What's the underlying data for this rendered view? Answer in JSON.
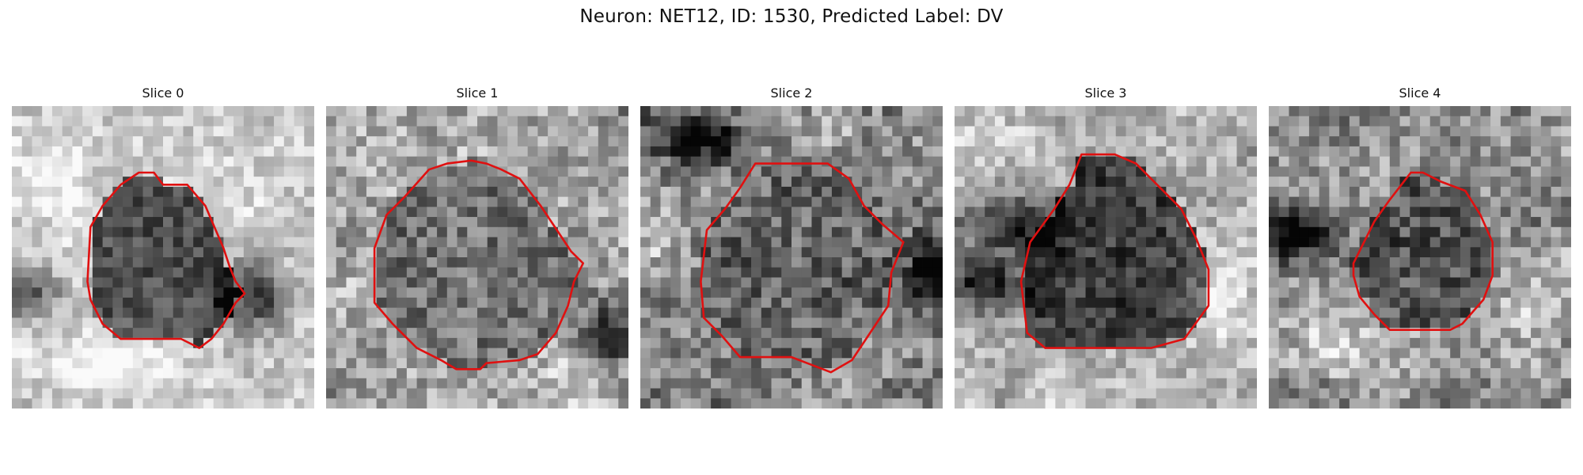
{
  "title": "Neuron: NET12, ID: 1530, Predicted Label: DV",
  "colors": {
    "contour": "#e01010"
  },
  "panels": [
    {
      "label": "Slice 0",
      "seed": 11,
      "light": 0.8,
      "spread": 0.14,
      "cell_level": 0.3,
      "cell": [
        [
          0.42,
          0.22
        ],
        [
          0.47,
          0.22
        ],
        [
          0.5,
          0.26
        ],
        [
          0.58,
          0.26
        ],
        [
          0.64,
          0.33
        ],
        [
          0.67,
          0.4
        ],
        [
          0.7,
          0.47
        ],
        [
          0.72,
          0.53
        ],
        [
          0.74,
          0.58
        ],
        [
          0.77,
          0.62
        ],
        [
          0.74,
          0.65
        ],
        [
          0.7,
          0.72
        ],
        [
          0.66,
          0.77
        ],
        [
          0.62,
          0.8
        ],
        [
          0.56,
          0.77
        ],
        [
          0.45,
          0.77
        ],
        [
          0.36,
          0.77
        ],
        [
          0.3,
          0.72
        ],
        [
          0.26,
          0.64
        ],
        [
          0.25,
          0.58
        ],
        [
          0.26,
          0.4
        ],
        [
          0.3,
          0.33
        ],
        [
          0.36,
          0.26
        ]
      ],
      "dark_blobs": [
        [
          0.8,
          0.63,
          0.11,
          0.12
        ],
        [
          0.05,
          0.62,
          0.12,
          0.09
        ]
      ],
      "light_blobs": [
        [
          0.3,
          0.85,
          0.2,
          0.08
        ],
        [
          0.1,
          0.2,
          0.12,
          0.12
        ]
      ]
    },
    {
      "label": "Slice 1",
      "seed": 23,
      "light": 0.66,
      "spread": 0.2,
      "cell_level": 0.45,
      "cell": [
        [
          0.4,
          0.19
        ],
        [
          0.48,
          0.18
        ],
        [
          0.53,
          0.19
        ],
        [
          0.58,
          0.21
        ],
        [
          0.64,
          0.24
        ],
        [
          0.71,
          0.33
        ],
        [
          0.77,
          0.42
        ],
        [
          0.81,
          0.48
        ],
        [
          0.85,
          0.52
        ],
        [
          0.82,
          0.58
        ],
        [
          0.8,
          0.66
        ],
        [
          0.76,
          0.75
        ],
        [
          0.7,
          0.82
        ],
        [
          0.64,
          0.84
        ],
        [
          0.53,
          0.85
        ],
        [
          0.51,
          0.87
        ],
        [
          0.43,
          0.87
        ],
        [
          0.38,
          0.84
        ],
        [
          0.3,
          0.8
        ],
        [
          0.22,
          0.72
        ],
        [
          0.16,
          0.65
        ],
        [
          0.16,
          0.47
        ],
        [
          0.2,
          0.36
        ],
        [
          0.26,
          0.3
        ],
        [
          0.34,
          0.21
        ]
      ],
      "dark_blobs": [
        [
          0.93,
          0.76,
          0.09,
          0.12
        ]
      ],
      "light_blobs": []
    },
    {
      "label": "Slice 2",
      "seed": 37,
      "light": 0.52,
      "spread": 0.22,
      "cell_level": 0.4,
      "cell": [
        [
          0.38,
          0.19
        ],
        [
          0.5,
          0.19
        ],
        [
          0.62,
          0.19
        ],
        [
          0.69,
          0.24
        ],
        [
          0.74,
          0.33
        ],
        [
          0.8,
          0.39
        ],
        [
          0.87,
          0.45
        ],
        [
          0.83,
          0.55
        ],
        [
          0.82,
          0.66
        ],
        [
          0.76,
          0.75
        ],
        [
          0.7,
          0.84
        ],
        [
          0.63,
          0.88
        ],
        [
          0.5,
          0.83
        ],
        [
          0.33,
          0.83
        ],
        [
          0.27,
          0.76
        ],
        [
          0.21,
          0.7
        ],
        [
          0.2,
          0.58
        ],
        [
          0.22,
          0.41
        ],
        [
          0.28,
          0.34
        ],
        [
          0.33,
          0.27
        ]
      ],
      "dark_blobs": [
        [
          0.2,
          0.1,
          0.15,
          0.07
        ],
        [
          0.95,
          0.52,
          0.06,
          0.14
        ]
      ],
      "light_blobs": [
        [
          0.05,
          0.4,
          0.08,
          0.12
        ],
        [
          0.62,
          0.08,
          0.12,
          0.06
        ]
      ]
    },
    {
      "label": "Slice 3",
      "seed": 51,
      "light": 0.68,
      "spread": 0.16,
      "cell_level": 0.24,
      "cell": [
        [
          0.42,
          0.16
        ],
        [
          0.53,
          0.16
        ],
        [
          0.6,
          0.19
        ],
        [
          0.67,
          0.26
        ],
        [
          0.75,
          0.34
        ],
        [
          0.8,
          0.44
        ],
        [
          0.84,
          0.54
        ],
        [
          0.84,
          0.66
        ],
        [
          0.76,
          0.77
        ],
        [
          0.65,
          0.8
        ],
        [
          0.57,
          0.8
        ],
        [
          0.3,
          0.8
        ],
        [
          0.24,
          0.75
        ],
        [
          0.22,
          0.58
        ],
        [
          0.25,
          0.45
        ],
        [
          0.33,
          0.34
        ],
        [
          0.38,
          0.26
        ]
      ],
      "dark_blobs": [
        [
          0.1,
          0.58,
          0.14,
          0.1
        ],
        [
          0.2,
          0.4,
          0.12,
          0.1
        ]
      ],
      "light_blobs": [
        [
          0.12,
          0.1,
          0.18,
          0.1
        ],
        [
          0.88,
          0.62,
          0.12,
          0.14
        ]
      ]
    },
    {
      "label": "Slice 4",
      "seed": 67,
      "light": 0.58,
      "spread": 0.2,
      "cell_level": 0.34,
      "cell": [
        [
          0.47,
          0.22
        ],
        [
          0.51,
          0.22
        ],
        [
          0.57,
          0.25
        ],
        [
          0.65,
          0.28
        ],
        [
          0.7,
          0.36
        ],
        [
          0.74,
          0.45
        ],
        [
          0.74,
          0.56
        ],
        [
          0.71,
          0.64
        ],
        [
          0.64,
          0.72
        ],
        [
          0.6,
          0.74
        ],
        [
          0.4,
          0.74
        ],
        [
          0.35,
          0.69
        ],
        [
          0.3,
          0.63
        ],
        [
          0.28,
          0.56
        ],
        [
          0.28,
          0.52
        ],
        [
          0.31,
          0.46
        ],
        [
          0.35,
          0.38
        ],
        [
          0.4,
          0.31
        ]
      ],
      "dark_blobs": [
        [
          0.1,
          0.42,
          0.12,
          0.1
        ]
      ],
      "light_blobs": [
        [
          0.86,
          0.66,
          0.12,
          0.12
        ],
        [
          0.2,
          0.8,
          0.16,
          0.1
        ]
      ]
    }
  ]
}
